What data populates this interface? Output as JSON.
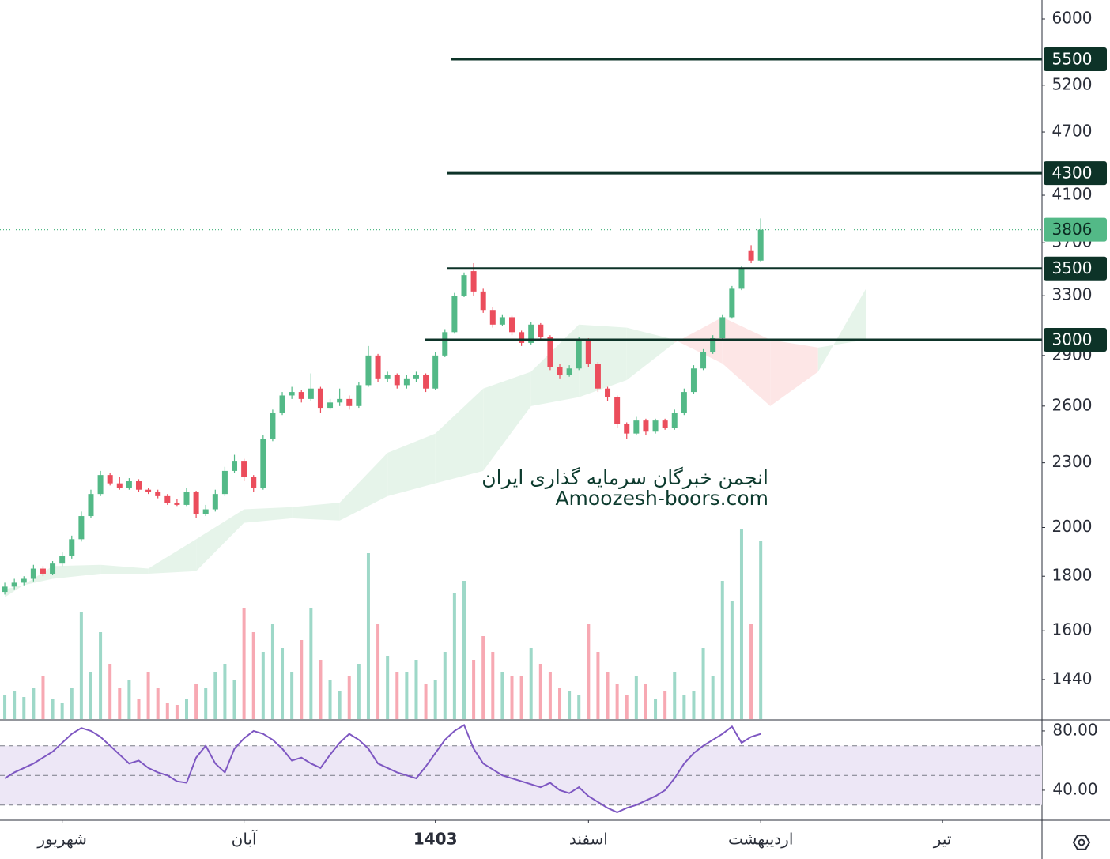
{
  "chart_data": {
    "type": "candlestick",
    "ylim": [
      1322,
      6251
    ],
    "log_scale": true,
    "yticks": [
      6000,
      5200,
      4700,
      4100,
      3700,
      3300,
      2900,
      2600,
      2300,
      2000,
      1800,
      1600,
      1440
    ],
    "xlim": [
      -0.5,
      108.4
    ],
    "xticks": [
      {
        "value": 6,
        "label": "شهریور"
      },
      {
        "value": 25,
        "label": "آبان"
      },
      {
        "value": 45,
        "label": "1403"
      },
      {
        "value": 61,
        "label": "اسفند"
      },
      {
        "value": 79,
        "label": "اردیبهشت"
      },
      {
        "value": 98,
        "label": "تیر"
      }
    ],
    "up_color": "#53b987",
    "down_color": "#eb4d5c",
    "volume_up_color": "#9ed8c8",
    "volume_down_color": "#f7a9b3",
    "candles": [
      [
        1740,
        1775,
        1730,
        1760
      ],
      [
        1760,
        1790,
        1750,
        1775
      ],
      [
        1775,
        1800,
        1765,
        1790
      ],
      [
        1790,
        1845,
        1780,
        1830
      ],
      [
        1830,
        1840,
        1800,
        1810
      ],
      [
        1810,
        1860,
        1805,
        1850
      ],
      [
        1850,
        1895,
        1840,
        1880
      ],
      [
        1880,
        1965,
        1870,
        1950
      ],
      [
        1950,
        2070,
        1940,
        2050
      ],
      [
        2050,
        2170,
        2040,
        2150
      ],
      [
        2150,
        2260,
        2140,
        2240
      ],
      [
        2240,
        2250,
        2190,
        2200
      ],
      [
        2200,
        2230,
        2170,
        2180
      ],
      [
        2180,
        2225,
        2170,
        2210
      ],
      [
        2210,
        2220,
        2160,
        2170
      ],
      [
        2170,
        2180,
        2150,
        2160
      ],
      [
        2160,
        2170,
        2130,
        2140
      ],
      [
        2140,
        2150,
        2100,
        2110
      ],
      [
        2110,
        2125,
        2095,
        2100
      ],
      [
        2100,
        2180,
        2095,
        2160
      ],
      [
        2160,
        2165,
        2040,
        2060
      ],
      [
        2060,
        2100,
        2050,
        2080
      ],
      [
        2080,
        2170,
        2070,
        2150
      ],
      [
        2150,
        2280,
        2140,
        2260
      ],
      [
        2260,
        2340,
        2250,
        2310
      ],
      [
        2310,
        2320,
        2210,
        2230
      ],
      [
        2230,
        2240,
        2160,
        2180
      ],
      [
        2180,
        2440,
        2170,
        2420
      ],
      [
        2420,
        2580,
        2410,
        2560
      ],
      [
        2560,
        2680,
        2550,
        2660
      ],
      [
        2660,
        2710,
        2640,
        2680
      ],
      [
        2680,
        2690,
        2620,
        2640
      ],
      [
        2640,
        2790,
        2630,
        2700
      ],
      [
        2700,
        2710,
        2560,
        2590
      ],
      [
        2590,
        2640,
        2580,
        2620
      ],
      [
        2620,
        2700,
        2600,
        2640
      ],
      [
        2640,
        2660,
        2580,
        2600
      ],
      [
        2600,
        2740,
        2590,
        2720
      ],
      [
        2720,
        2960,
        2710,
        2900
      ],
      [
        2900,
        2910,
        2740,
        2760
      ],
      [
        2760,
        2800,
        2740,
        2780
      ],
      [
        2780,
        2790,
        2700,
        2720
      ],
      [
        2720,
        2780,
        2700,
        2760
      ],
      [
        2760,
        2800,
        2740,
        2780
      ],
      [
        2780,
        2790,
        2680,
        2700
      ],
      [
        2700,
        2920,
        2690,
        2900
      ],
      [
        2900,
        3070,
        2890,
        3050
      ],
      [
        3050,
        3320,
        3040,
        3300
      ],
      [
        3300,
        3470,
        3290,
        3450
      ],
      [
        3480,
        3540,
        3300,
        3330
      ],
      [
        3330,
        3350,
        3180,
        3200
      ],
      [
        3200,
        3220,
        3080,
        3100
      ],
      [
        3100,
        3170,
        3090,
        3150
      ],
      [
        3150,
        3160,
        3030,
        3050
      ],
      [
        3050,
        3060,
        2960,
        2980
      ],
      [
        2980,
        3120,
        2970,
        3100
      ],
      [
        3100,
        3110,
        3000,
        3020
      ],
      [
        3020,
        3030,
        2810,
        2830
      ],
      [
        2830,
        2850,
        2760,
        2780
      ],
      [
        2780,
        2840,
        2770,
        2820
      ],
      [
        2820,
        3020,
        2810,
        3000
      ],
      [
        3000,
        3010,
        2830,
        2850
      ],
      [
        2850,
        2860,
        2680,
        2700
      ],
      [
        2700,
        2710,
        2630,
        2650
      ],
      [
        2650,
        2660,
        2480,
        2500
      ],
      [
        2500,
        2510,
        2420,
        2450
      ],
      [
        2450,
        2540,
        2440,
        2520
      ],
      [
        2520,
        2530,
        2440,
        2460
      ],
      [
        2460,
        2530,
        2450,
        2520
      ],
      [
        2520,
        2530,
        2470,
        2480
      ],
      [
        2480,
        2580,
        2470,
        2560
      ],
      [
        2560,
        2700,
        2550,
        2680
      ],
      [
        2680,
        2840,
        2670,
        2820
      ],
      [
        2820,
        2940,
        2810,
        2920
      ],
      [
        2920,
        3030,
        2910,
        3010
      ],
      [
        3010,
        3170,
        3000,
        3150
      ],
      [
        3150,
        3370,
        3140,
        3350
      ],
      [
        3350,
        3520,
        3340,
        3500
      ],
      [
        3640,
        3680,
        3540,
        3560
      ],
      [
        3560,
        3900,
        3550,
        3806
      ]
    ],
    "volume": [
      30,
      35,
      28,
      40,
      55,
      25,
      20,
      40,
      135,
      60,
      110,
      70,
      40,
      50,
      25,
      60,
      40,
      20,
      18,
      25,
      45,
      40,
      60,
      70,
      50,
      140,
      110,
      85,
      120,
      90,
      60,
      100,
      140,
      75,
      50,
      35,
      55,
      70,
      210,
      120,
      80,
      60,
      60,
      75,
      45,
      50,
      85,
      160,
      175,
      75,
      105,
      85,
      60,
      55,
      55,
      90,
      70,
      60,
      40,
      35,
      30,
      120,
      85,
      60,
      45,
      30,
      55,
      45,
      25,
      35,
      60,
      30,
      35,
      90,
      55,
      175,
      150,
      240,
      120,
      225
    ],
    "rsi": {
      "values": [
        48,
        52,
        55,
        58,
        62,
        66,
        72,
        78,
        82,
        80,
        76,
        70,
        64,
        58,
        60,
        55,
        52,
        50,
        46,
        45,
        62,
        70,
        58,
        52,
        68,
        75,
        80,
        78,
        74,
        68,
        60,
        62,
        58,
        55,
        64,
        72,
        78,
        74,
        68,
        58,
        55,
        52,
        50,
        48,
        56,
        65,
        74,
        80,
        84,
        68,
        58,
        54,
        50,
        48,
        46,
        44,
        42,
        45,
        40,
        38,
        42,
        36,
        32,
        28,
        25,
        28,
        30,
        33,
        36,
        40,
        48,
        58,
        65,
        70,
        74,
        78,
        83,
        72,
        76,
        78
      ],
      "ylim": [
        19.7,
        86.9
      ],
      "yticks": [
        {
          "value": 80,
          "label": "80.00"
        },
        {
          "value": 40,
          "label": "40.00"
        }
      ],
      "levels": [
        70,
        50,
        30
      ],
      "color": "#7e57c2",
      "band_color": "#ede7f6"
    },
    "cloud": {
      "x": [
        0,
        5,
        10,
        15,
        20,
        25,
        30,
        35,
        40,
        45,
        50,
        55,
        60,
        65,
        70,
        75,
        80,
        85,
        90
      ],
      "span_a": [
        1720,
        1840,
        1845,
        1830,
        1950,
        2080,
        2090,
        2110,
        2350,
        2450,
        2700,
        2800,
        3100,
        3080,
        3000,
        2850,
        2600,
        2800,
        3350
      ],
      "span_b": [
        1750,
        1790,
        1810,
        1810,
        1820,
        2020,
        2040,
        2030,
        2140,
        2200,
        2260,
        2600,
        2650,
        2750,
        2980,
        3150,
        3000,
        2950,
        3000
      ],
      "up_color": "#e6f4ea",
      "down_color": "#fde6e6"
    },
    "levels": [
      5500,
      4300,
      3500,
      3000
    ],
    "level_color": "#0d3328",
    "watermark": [
      "انجمن خبرگان سرمایه گذاری ایران",
      "Amoozesh-boors.com"
    ]
  }
}
